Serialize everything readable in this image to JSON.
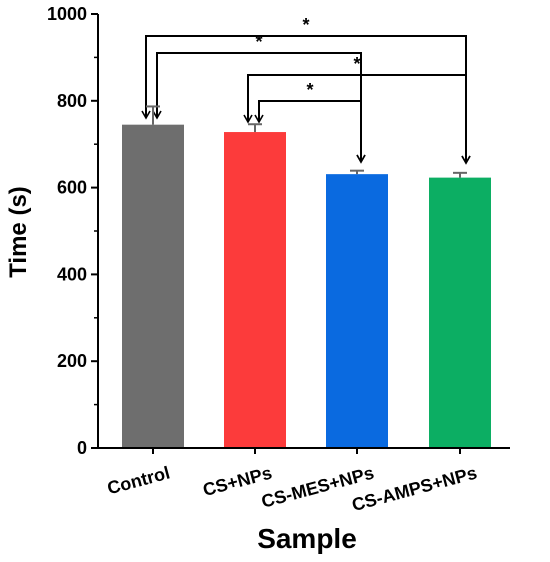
{
  "chart_data": {
    "type": "bar",
    "categories": [
      "Control",
      "CS+NPs",
      "CS-MES+NPs",
      "CS-AMPS+NPs"
    ],
    "values": [
      745,
      728,
      631,
      623
    ],
    "errors": [
      42,
      18,
      8,
      11
    ],
    "colors": [
      "#6e6e6e",
      "#fc3b3b",
      "#0a6ae0",
      "#0cae63"
    ],
    "xlabel": "Sample",
    "ylabel": "Time (s)",
    "ylim": [
      0,
      1000
    ],
    "yticks": [
      0,
      200,
      400,
      600,
      800,
      1000
    ],
    "ytick_labels": [
      "0",
      "200",
      "400",
      "600",
      "800",
      "1000"
    ],
    "significance": [
      {
        "from": "Control",
        "to": "CS-AMPS+NPs",
        "label": "*"
      },
      {
        "from": "Control",
        "to": "CS-MES+NPs",
        "label": "*"
      },
      {
        "from": "CS+NPs",
        "to": "CS-AMPS+NPs",
        "label": "*"
      },
      {
        "from": "CS+NPs",
        "to": "CS-MES+NPs",
        "label": "*"
      }
    ],
    "grid": false
  }
}
